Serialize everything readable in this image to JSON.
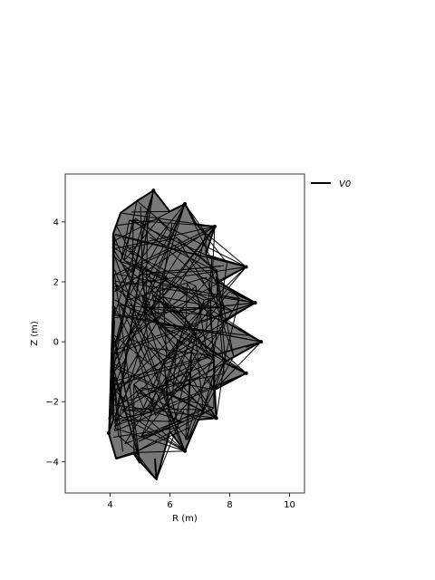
{
  "chart_data": {
    "type": "line",
    "xlabel": "R (m)",
    "ylabel": "Z (m)",
    "xlim": [
      2.5,
      10.5
    ],
    "ylim": [
      -5.05,
      5.6
    ],
    "xticks": [
      4,
      6,
      8,
      10
    ],
    "yticks": [
      -4,
      -2,
      0,
      2,
      4
    ],
    "grid": false,
    "legend_position": "outside-top-right",
    "series": [
      {
        "name": "V0",
        "color": "#000000",
        "description_of_shape": "dense wireframe mesh of a D-shaped vacuum vessel cross-section with tooth-like points along the outer edge",
        "outline": [
          [
            4.1,
            3.6
          ],
          [
            4.35,
            4.3
          ],
          [
            4.9,
            4.7
          ],
          [
            5.45,
            5.05
          ],
          [
            6.0,
            4.35
          ],
          [
            6.5,
            4.6
          ],
          [
            6.9,
            3.9
          ],
          [
            7.5,
            3.85
          ],
          [
            7.2,
            2.9
          ],
          [
            8.55,
            2.5
          ],
          [
            7.6,
            2.0
          ],
          [
            8.85,
            1.3
          ],
          [
            7.8,
            0.7
          ],
          [
            9.05,
            0.0
          ],
          [
            7.8,
            -0.7
          ],
          [
            8.55,
            -1.05
          ],
          [
            7.5,
            -1.6
          ],
          [
            7.55,
            -2.55
          ],
          [
            6.95,
            -2.6
          ],
          [
            6.5,
            -3.65
          ],
          [
            6.0,
            -3.0
          ],
          [
            5.55,
            -4.6
          ],
          [
            5.0,
            -4.0
          ],
          [
            4.8,
            -3.7
          ],
          [
            4.2,
            -3.9
          ],
          [
            3.95,
            -3.05
          ],
          [
            4.1,
            -2.6
          ],
          [
            4.1,
            -1.0
          ],
          [
            4.1,
            1.0
          ],
          [
            4.1,
            3.6
          ]
        ],
        "markers": [
          [
            5.45,
            5.05
          ],
          [
            6.5,
            4.6
          ],
          [
            7.5,
            3.85
          ],
          [
            8.55,
            2.5
          ],
          [
            8.85,
            1.3
          ],
          [
            9.05,
            0.0
          ],
          [
            8.55,
            -1.05
          ],
          [
            7.55,
            -2.55
          ],
          [
            6.5,
            -3.65
          ],
          [
            5.0,
            -4.0
          ],
          [
            3.95,
            -3.05
          ],
          [
            4.0,
            -2.55
          ]
        ]
      }
    ]
  }
}
